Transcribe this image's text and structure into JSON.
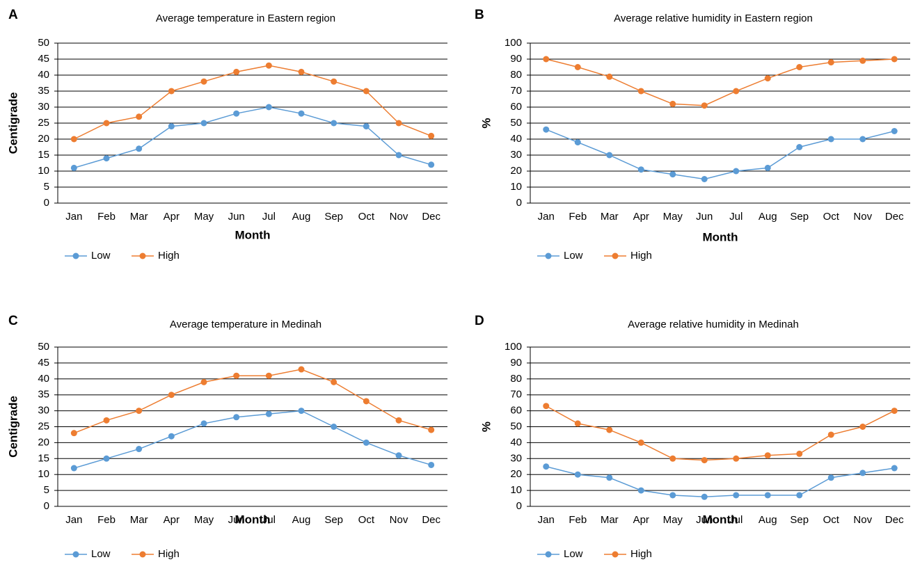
{
  "chart_data": [
    {
      "type": "line",
      "label": "A",
      "title": "Average temperature in Eastern region",
      "x_label": "Month",
      "y_label": "Centigrade",
      "categories": [
        "Jan",
        "Feb",
        "Mar",
        "Apr",
        "May",
        "Jun",
        "Jul",
        "Aug",
        "Sep",
        "Oct",
        "Nov",
        "Dec"
      ],
      "series": [
        {
          "name": "Low",
          "color": "#5b9bd5",
          "values": [
            11,
            14,
            17,
            24,
            25,
            28,
            30,
            28,
            25,
            24,
            15,
            12
          ]
        },
        {
          "name": "High",
          "color": "#ed7d31",
          "values": [
            20,
            25,
            27,
            35,
            38,
            41,
            43,
            41,
            38,
            35,
            25,
            21
          ]
        }
      ],
      "ylim": [
        0,
        50
      ],
      "yticks": [
        0,
        5,
        10,
        15,
        20,
        25,
        30,
        35,
        40,
        45,
        50
      ],
      "grid": true,
      "legend": "bottom-left"
    },
    {
      "type": "line",
      "label": "B",
      "title": "Average relative humidity in Eastern region",
      "x_label": "Month",
      "y_label": "%",
      "categories": [
        "Jan",
        "Feb",
        "Mar",
        "Apr",
        "May",
        "Jun",
        "Jul",
        "Aug",
        "Sep",
        "Oct",
        "Nov",
        "Dec"
      ],
      "series": [
        {
          "name": "Low",
          "color": "#5b9bd5",
          "values": [
            46,
            38,
            30,
            21,
            18,
            15,
            20,
            22,
            35,
            40,
            40,
            45
          ]
        },
        {
          "name": "High",
          "color": "#ed7d31",
          "values": [
            90,
            85,
            79,
            70,
            62,
            61,
            70,
            78,
            85,
            88,
            89,
            90
          ]
        }
      ],
      "ylim": [
        0,
        100
      ],
      "yticks": [
        0,
        10,
        20,
        30,
        40,
        50,
        60,
        70,
        80,
        90,
        100
      ],
      "grid": true,
      "legend": "bottom-left"
    },
    {
      "type": "line",
      "label": "C",
      "title": "Average temperature in Medinah",
      "x_label": "Month",
      "y_label": "Centigrade",
      "categories": [
        "Jan",
        "Feb",
        "Mar",
        "Apr",
        "May",
        "Jun",
        "Jul",
        "Aug",
        "Sep",
        "Oct",
        "Nov",
        "Dec"
      ],
      "series": [
        {
          "name": "Low",
          "color": "#5b9bd5",
          "values": [
            12,
            15,
            18,
            22,
            26,
            28,
            29,
            30,
            25,
            20,
            16,
            13
          ]
        },
        {
          "name": "High",
          "color": "#ed7d31",
          "values": [
            23,
            27,
            30,
            35,
            39,
            41,
            41,
            43,
            39,
            33,
            27,
            24
          ]
        }
      ],
      "ylim": [
        0,
        50
      ],
      "yticks": [
        0,
        5,
        10,
        15,
        20,
        25,
        30,
        35,
        40,
        45,
        50
      ],
      "grid": true,
      "legend": "bottom-left"
    },
    {
      "type": "line",
      "label": "D",
      "title": "Average relative humidity in Medinah",
      "x_label": "Month",
      "y_label": "%",
      "categories": [
        "Jan",
        "Feb",
        "Mar",
        "Apr",
        "May",
        "Jun",
        "Jul",
        "Aug",
        "Sep",
        "Oct",
        "Nov",
        "Dec"
      ],
      "series": [
        {
          "name": "Low",
          "color": "#5b9bd5",
          "values": [
            25,
            20,
            18,
            10,
            7,
            6,
            7,
            7,
            7,
            18,
            21,
            24
          ]
        },
        {
          "name": "High",
          "color": "#ed7d31",
          "values": [
            63,
            52,
            48,
            40,
            30,
            29,
            30,
            32,
            33,
            45,
            50,
            60
          ]
        }
      ],
      "ylim": [
        0,
        100
      ],
      "yticks": [
        0,
        10,
        20,
        30,
        40,
        50,
        60,
        70,
        80,
        90,
        100
      ],
      "grid": true,
      "legend": "bottom-left"
    }
  ]
}
